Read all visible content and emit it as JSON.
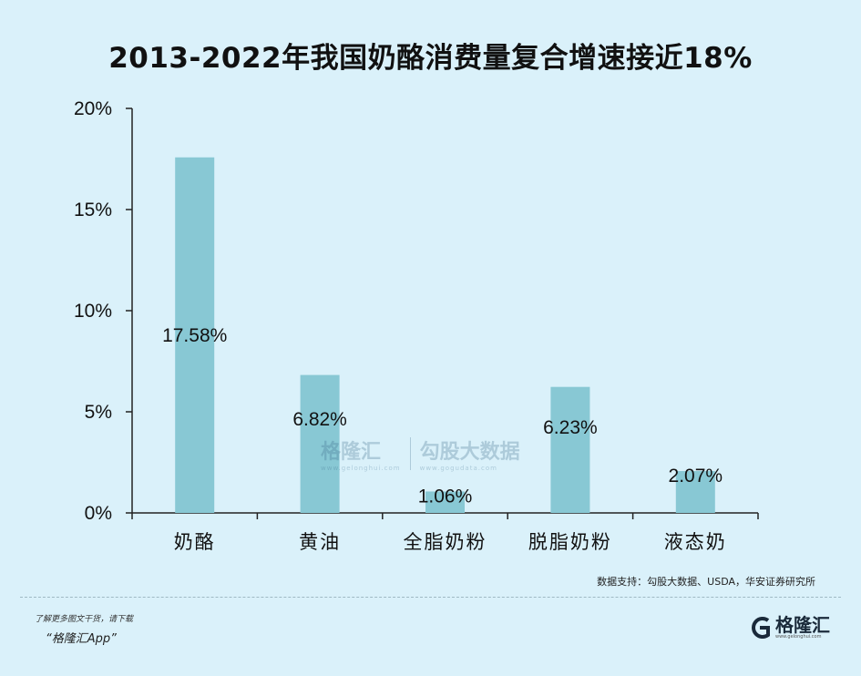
{
  "chart_data": {
    "type": "bar",
    "title": "2013-2022年我国奶酪消费量复合增速接近18%",
    "categories": [
      "奶酪",
      "黄油",
      "全脂奶粉",
      "脱脂奶粉",
      "液态奶"
    ],
    "values": [
      17.58,
      6.82,
      1.06,
      6.23,
      2.07
    ],
    "data_labels": [
      "17.58%",
      "6.82%",
      "1.06%",
      "6.23%",
      "2.07%"
    ],
    "yticks": [
      "0%",
      "5%",
      "10%",
      "15%",
      "20%"
    ],
    "ytick_values": [
      0,
      5,
      10,
      15,
      20
    ],
    "ylim": [
      0,
      20
    ],
    "grid": false,
    "bar_color": "#88c8d4"
  },
  "source": "数据支持：勾股大数据、USDA，华安证券研究所",
  "footer": {
    "promo_line1": "了解更多图文干货，请下载",
    "promo_line2": "“格隆汇App”",
    "logo_text": "格隆汇",
    "logo_sub": "www.gelonghui.com"
  },
  "watermark": {
    "brand1": "格隆汇",
    "brand1_sub": "www.gelonghui.com",
    "brand2": "勾股大数据",
    "brand2_sub": "www.gogudata.com"
  }
}
